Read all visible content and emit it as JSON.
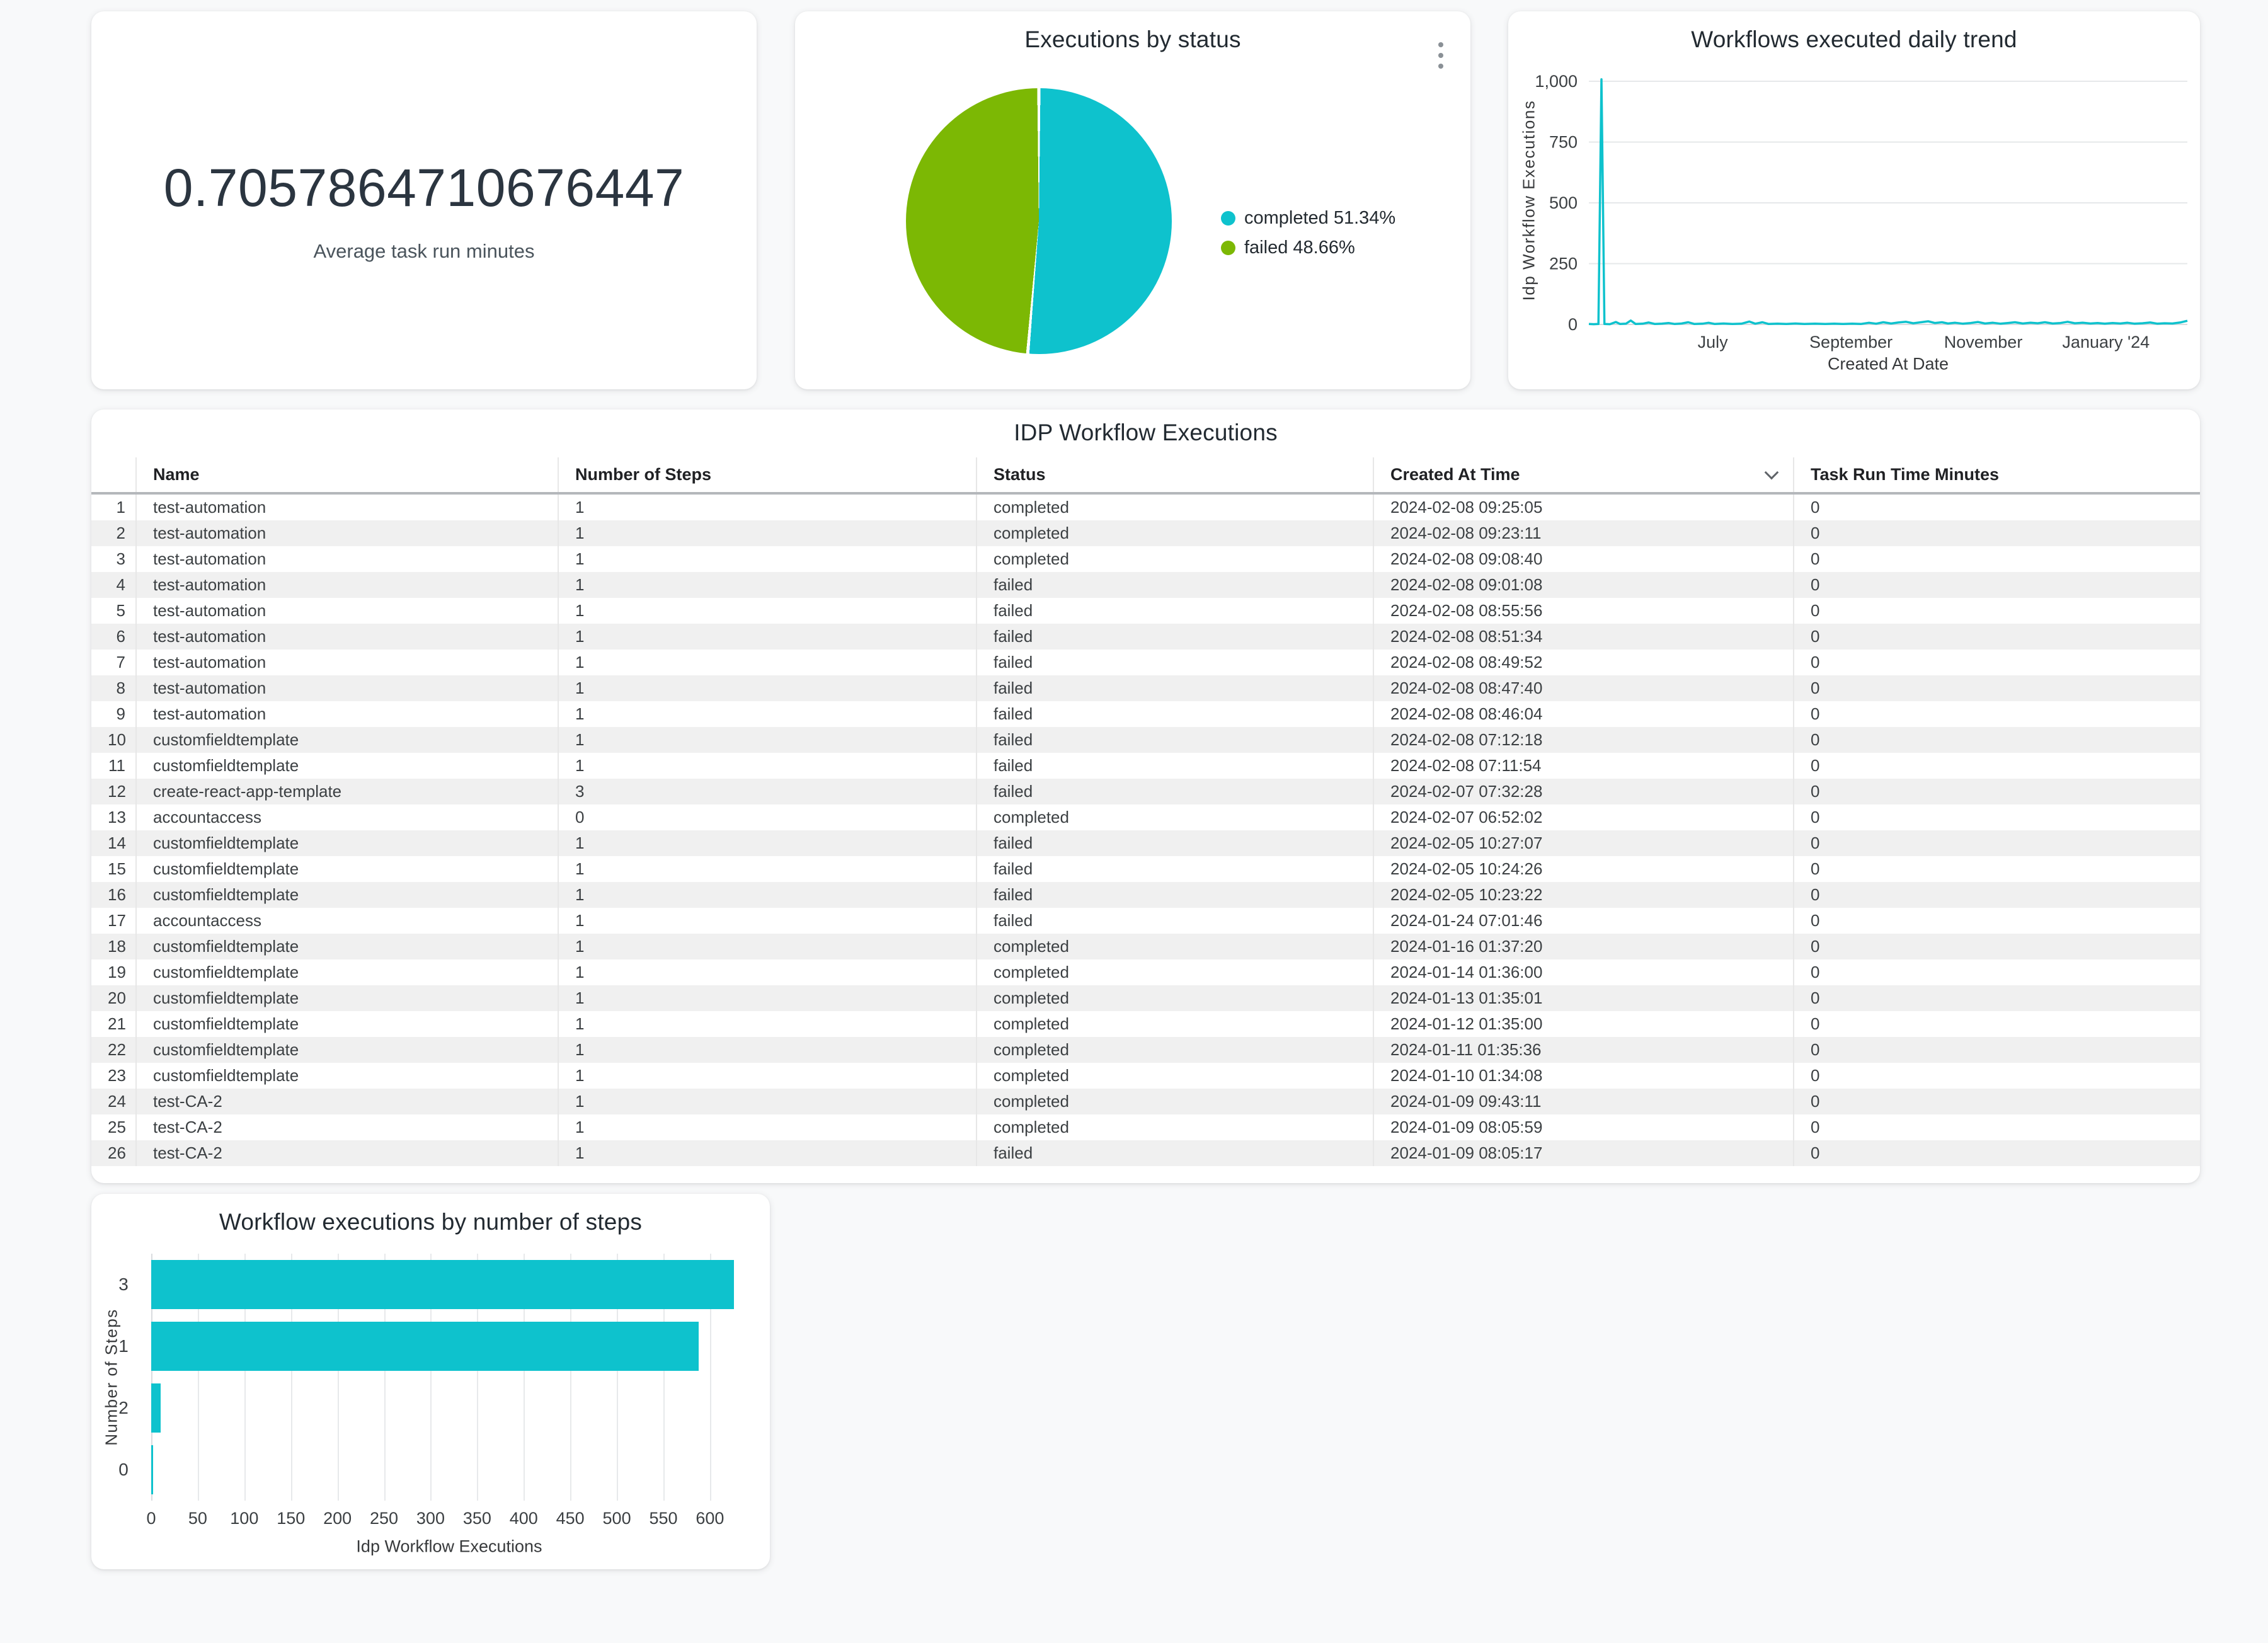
{
  "accent": "#0ec2cd",
  "scorecard": {
    "value": "0.7057864710676447",
    "label": "Average task run minutes"
  },
  "pie": {
    "title": "Executions by status",
    "menu_icon": "kebab-menu-icon",
    "type": "pie",
    "slices": [
      {
        "label": "completed",
        "pct": 51.34,
        "color": "#0ec2cd",
        "legend": "completed 51.34%"
      },
      {
        "label": "failed",
        "pct": 48.66,
        "color": "#7cb804",
        "legend": "failed 48.66%"
      }
    ]
  },
  "trend": {
    "title": "Workflows executed daily trend",
    "type": "line",
    "y_axis_label": "Idp Workflow Executions",
    "x_axis_label": "Created At Date",
    "line_color": "#0ec2cd",
    "y_ticks": [
      {
        "value": 0,
        "label": "0"
      },
      {
        "value": 250,
        "label": "250"
      },
      {
        "value": 500,
        "label": "500"
      },
      {
        "value": 750,
        "label": "750"
      },
      {
        "value": 1000,
        "label": "1,000"
      }
    ],
    "y_max": 1049,
    "x_ticks": [
      {
        "label": "July",
        "frac": 0.207
      },
      {
        "label": "September",
        "frac": 0.438
      },
      {
        "label": "November",
        "frac": 0.659
      },
      {
        "label": "January '24",
        "frac": 0.864
      }
    ],
    "points": [
      [
        0,
        2
      ],
      [
        0.008,
        1
      ],
      [
        0.016,
        2
      ],
      [
        0.021,
        1008
      ],
      [
        0.026,
        2
      ],
      [
        0.035,
        1
      ],
      [
        0.045,
        10
      ],
      [
        0.052,
        2
      ],
      [
        0.062,
        3
      ],
      [
        0.07,
        16
      ],
      [
        0.078,
        2
      ],
      [
        0.09,
        3
      ],
      [
        0.1,
        8
      ],
      [
        0.11,
        2
      ],
      [
        0.122,
        3
      ],
      [
        0.133,
        6
      ],
      [
        0.143,
        2
      ],
      [
        0.155,
        4
      ],
      [
        0.166,
        9
      ],
      [
        0.176,
        2
      ],
      [
        0.19,
        3
      ],
      [
        0.2,
        7
      ],
      [
        0.21,
        2
      ],
      [
        0.225,
        4
      ],
      [
        0.24,
        2
      ],
      [
        0.255,
        3
      ],
      [
        0.268,
        12
      ],
      [
        0.278,
        3
      ],
      [
        0.29,
        9
      ],
      [
        0.3,
        2
      ],
      [
        0.315,
        3
      ],
      [
        0.33,
        2
      ],
      [
        0.345,
        4
      ],
      [
        0.36,
        2
      ],
      [
        0.378,
        3
      ],
      [
        0.395,
        2
      ],
      [
        0.41,
        3
      ],
      [
        0.425,
        2
      ],
      [
        0.44,
        3
      ],
      [
        0.455,
        2
      ],
      [
        0.468,
        7
      ],
      [
        0.48,
        3
      ],
      [
        0.492,
        9
      ],
      [
        0.505,
        4
      ],
      [
        0.517,
        8
      ],
      [
        0.53,
        11
      ],
      [
        0.542,
        5
      ],
      [
        0.555,
        9
      ],
      [
        0.567,
        13
      ],
      [
        0.578,
        6
      ],
      [
        0.59,
        9
      ],
      [
        0.6,
        4
      ],
      [
        0.612,
        7
      ],
      [
        0.625,
        3
      ],
      [
        0.638,
        6
      ],
      [
        0.65,
        10
      ],
      [
        0.662,
        4
      ],
      [
        0.675,
        7
      ],
      [
        0.688,
        3
      ],
      [
        0.7,
        6
      ],
      [
        0.712,
        9
      ],
      [
        0.725,
        4
      ],
      [
        0.738,
        7
      ],
      [
        0.75,
        5
      ],
      [
        0.762,
        9
      ],
      [
        0.775,
        4
      ],
      [
        0.788,
        6
      ],
      [
        0.8,
        11
      ],
      [
        0.812,
        5
      ],
      [
        0.825,
        7
      ],
      [
        0.838,
        4
      ],
      [
        0.85,
        6
      ],
      [
        0.862,
        3
      ],
      [
        0.875,
        6
      ],
      [
        0.888,
        4
      ],
      [
        0.9,
        7
      ],
      [
        0.912,
        3
      ],
      [
        0.925,
        5
      ],
      [
        0.938,
        8
      ],
      [
        0.95,
        3
      ],
      [
        0.962,
        5
      ],
      [
        0.975,
        4
      ],
      [
        0.988,
        8
      ],
      [
        1,
        15
      ]
    ]
  },
  "table": {
    "title": "IDP Workflow Executions",
    "columns": [
      {
        "label": ""
      },
      {
        "label": "Name"
      },
      {
        "label": "Number of Steps"
      },
      {
        "label": "Status"
      },
      {
        "label": "Created At Time",
        "sort": "desc"
      },
      {
        "label": "Task Run Time Minutes"
      }
    ],
    "rows": [
      [
        "test-automation",
        "1",
        "completed",
        "2024-02-08 09:25:05",
        "0"
      ],
      [
        "test-automation",
        "1",
        "completed",
        "2024-02-08 09:23:11",
        "0"
      ],
      [
        "test-automation",
        "1",
        "completed",
        "2024-02-08 09:08:40",
        "0"
      ],
      [
        "test-automation",
        "1",
        "failed",
        "2024-02-08 09:01:08",
        "0"
      ],
      [
        "test-automation",
        "1",
        "failed",
        "2024-02-08 08:55:56",
        "0"
      ],
      [
        "test-automation",
        "1",
        "failed",
        "2024-02-08 08:51:34",
        "0"
      ],
      [
        "test-automation",
        "1",
        "failed",
        "2024-02-08 08:49:52",
        "0"
      ],
      [
        "test-automation",
        "1",
        "failed",
        "2024-02-08 08:47:40",
        "0"
      ],
      [
        "test-automation",
        "1",
        "failed",
        "2024-02-08 08:46:04",
        "0"
      ],
      [
        "customfieldtemplate",
        "1",
        "failed",
        "2024-02-08 07:12:18",
        "0"
      ],
      [
        "customfieldtemplate",
        "1",
        "failed",
        "2024-02-08 07:11:54",
        "0"
      ],
      [
        "create-react-app-template",
        "3",
        "failed",
        "2024-02-07 07:32:28",
        "0"
      ],
      [
        "accountaccess",
        "0",
        "completed",
        "2024-02-07 06:52:02",
        "0"
      ],
      [
        "customfieldtemplate",
        "1",
        "failed",
        "2024-02-05 10:27:07",
        "0"
      ],
      [
        "customfieldtemplate",
        "1",
        "failed",
        "2024-02-05 10:24:26",
        "0"
      ],
      [
        "customfieldtemplate",
        "1",
        "failed",
        "2024-02-05 10:23:22",
        "0"
      ],
      [
        "accountaccess",
        "1",
        "failed",
        "2024-01-24 07:01:46",
        "0"
      ],
      [
        "customfieldtemplate",
        "1",
        "completed",
        "2024-01-16 01:37:20",
        "0"
      ],
      [
        "customfieldtemplate",
        "1",
        "completed",
        "2024-01-14 01:36:00",
        "0"
      ],
      [
        "customfieldtemplate",
        "1",
        "completed",
        "2024-01-13 01:35:01",
        "0"
      ],
      [
        "customfieldtemplate",
        "1",
        "completed",
        "2024-01-12 01:35:00",
        "0"
      ],
      [
        "customfieldtemplate",
        "1",
        "completed",
        "2024-01-11 01:35:36",
        "0"
      ],
      [
        "customfieldtemplate",
        "1",
        "completed",
        "2024-01-10 01:34:08",
        "0"
      ],
      [
        "test-CA-2",
        "1",
        "completed",
        "2024-01-09 09:43:11",
        "0"
      ],
      [
        "test-CA-2",
        "1",
        "completed",
        "2024-01-09 08:05:59",
        "0"
      ],
      [
        "test-CA-2",
        "1",
        "failed",
        "2024-01-09 08:05:17",
        "0"
      ]
    ]
  },
  "bar": {
    "title": "Workflow executions by number of steps",
    "type": "bar",
    "y_axis_label": "Number of Steps",
    "x_axis_label": "Idp Workflow Executions",
    "color": "#0ec2cd",
    "x_ticks": [
      0,
      50,
      100,
      150,
      200,
      250,
      300,
      350,
      400,
      450,
      500,
      550,
      600
    ],
    "x_max": 640,
    "bars": [
      {
        "category": "3",
        "value": 626
      },
      {
        "category": "1",
        "value": 588
      },
      {
        "category": "2",
        "value": 10
      },
      {
        "category": "0",
        "value": 2
      }
    ]
  }
}
